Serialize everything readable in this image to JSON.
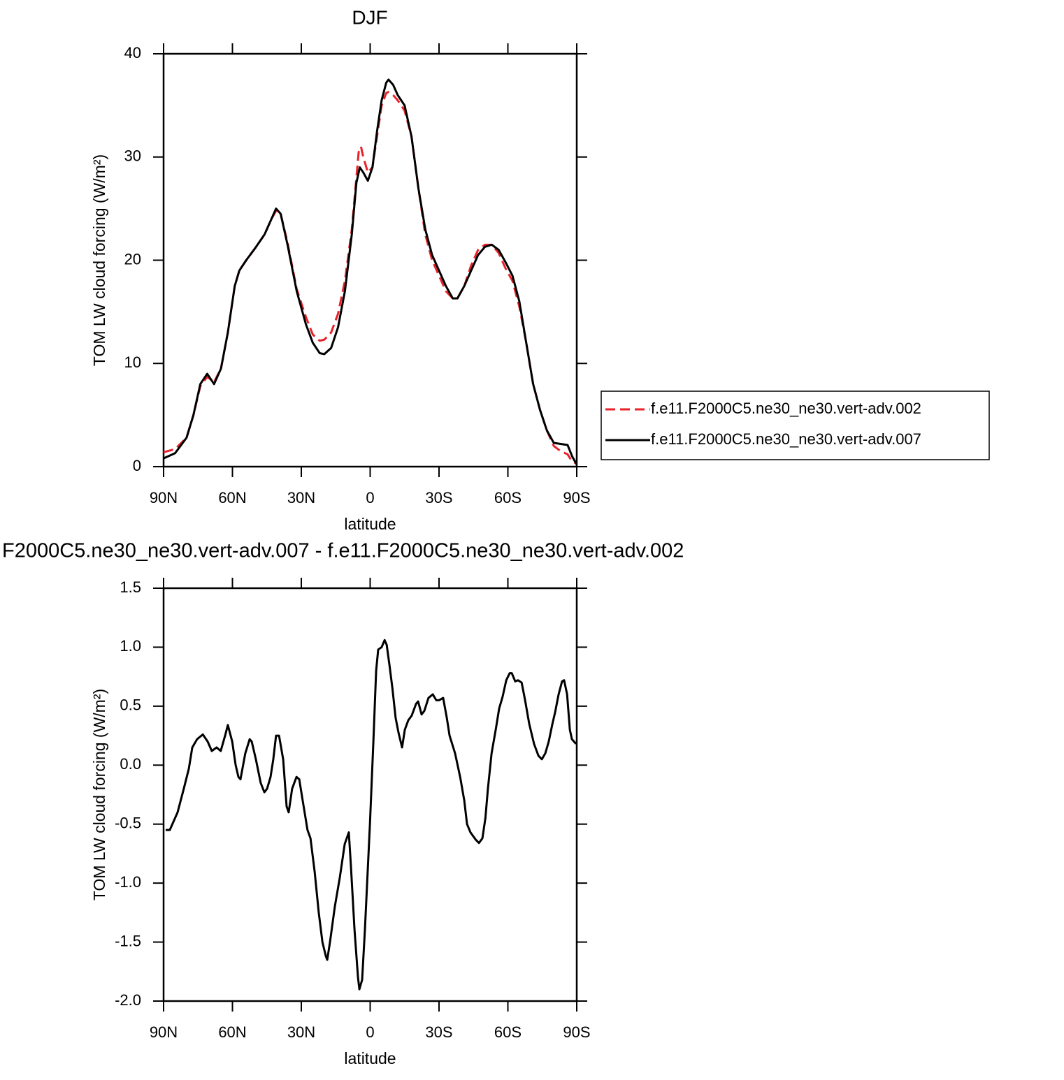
{
  "chart_data": [
    {
      "type": "line",
      "title": "DJF",
      "xlabel": "latitude",
      "ylabel": "TOM LW cloud forcing (W/m²)",
      "xlim": [
        90,
        -90
      ],
      "xticks": [
        {
          "value": 90,
          "label": "90N"
        },
        {
          "value": 60,
          "label": "60N"
        },
        {
          "value": 30,
          "label": "30N"
        },
        0,
        {
          "value": -30,
          "label": "30S"
        },
        {
          "value": -60,
          "label": "60S"
        },
        {
          "value": -90,
          "label": "90S"
        }
      ],
      "ylim": [
        0,
        40
      ],
      "yticks": [
        0,
        10,
        20,
        30,
        40
      ],
      "series": [
        {
          "name": "f.e11.F2000C5.ne30_ne30.vert-adv.002",
          "color": "#e8222a",
          "line_style": "dashed",
          "x": [
            90,
            85,
            80,
            77,
            74,
            71,
            68,
            65,
            62,
            59,
            57,
            54,
            50,
            46,
            43,
            41,
            39,
            36,
            32,
            28,
            25,
            22,
            20,
            17,
            14,
            11,
            8,
            6,
            5,
            4,
            3,
            1,
            -1,
            -3,
            -5,
            -7,
            -8,
            -10,
            -12,
            -15,
            -18,
            -21,
            -24,
            -27,
            -30,
            -33,
            -36,
            -38,
            -41,
            -44,
            -47,
            -50,
            -53,
            -56,
            -59,
            -62,
            -65,
            -68,
            -71,
            -74,
            -77,
            -80,
            -83,
            -86,
            -88,
            -90
          ],
          "values": [
            1.4,
            1.7,
            2.8,
            5,
            7.8,
            8.7,
            8.2,
            9.5,
            13,
            17.5,
            19,
            20,
            21.2,
            22.5,
            24,
            24.8,
            24.5,
            21.7,
            17.2,
            14.5,
            12.8,
            12.2,
            12.3,
            13,
            14.8,
            18,
            23,
            28,
            30.5,
            31,
            30,
            28.5,
            29,
            32,
            35,
            36.2,
            36.3,
            36,
            35.5,
            34.5,
            32,
            27,
            22.5,
            20,
            18.5,
            17,
            16.3,
            16.3,
            17.5,
            19.5,
            21,
            21.5,
            21.5,
            20.7,
            19.2,
            18,
            15.5,
            12,
            8,
            5.5,
            3.5,
            2,
            1.5,
            1.2,
            0.5,
            0.3
          ]
        },
        {
          "name": "f.e11.F2000C5.ne30_ne30.vert-adv.007",
          "color": "#000000",
          "line_style": "solid",
          "x": [
            90,
            85,
            80,
            77,
            74,
            71,
            68,
            65,
            62,
            59,
            57,
            54,
            50,
            46,
            43,
            41,
            39,
            36,
            32,
            28,
            25,
            22,
            20,
            17,
            14,
            11,
            8,
            6,
            4.5,
            3,
            1,
            -1,
            -3,
            -5,
            -7,
            -8,
            -10,
            -12,
            -15,
            -18,
            -21,
            -24,
            -27,
            -30,
            -33,
            -36,
            -38,
            -41,
            -44,
            -47,
            -50,
            -53,
            -56,
            -59,
            -62,
            -65,
            -68,
            -71,
            -74,
            -77,
            -80,
            -83,
            -86,
            -88,
            -90
          ],
          "values": [
            0.8,
            1.3,
            2.8,
            5,
            8,
            9,
            8,
            9.5,
            13,
            17.5,
            19,
            20,
            21.2,
            22.5,
            24,
            25,
            24.5,
            21.5,
            17,
            13.8,
            12,
            11,
            10.9,
            11.5,
            13.5,
            17,
            22.5,
            27.5,
            29,
            28.5,
            27.7,
            29,
            32.5,
            35.5,
            37.2,
            37.5,
            37,
            36,
            35,
            32,
            27,
            23,
            20.5,
            19,
            17.5,
            16.3,
            16.3,
            17.5,
            19,
            20.5,
            21.3,
            21.5,
            21,
            19.8,
            18.5,
            16,
            12,
            8,
            5.5,
            3.5,
            2.3,
            2.2,
            2.1,
            1,
            0.2
          ]
        }
      ]
    },
    {
      "type": "line",
      "title": "F2000C5.ne30_ne30.vert-adv.007 - f.e11.F2000C5.ne30_ne30.vert-adv.002",
      "xlabel": "latitude",
      "ylabel": "TOM LW cloud forcing (W/m²)",
      "xlim": [
        90,
        -90
      ],
      "xticks": [
        {
          "value": 90,
          "label": "90N"
        },
        {
          "value": 60,
          "label": "60N"
        },
        {
          "value": 30,
          "label": "30N"
        },
        0,
        {
          "value": -30,
          "label": "30S"
        },
        {
          "value": -60,
          "label": "60S"
        },
        {
          "value": -90,
          "label": "90S"
        }
      ],
      "ylim": [
        -2,
        1.5
      ],
      "yticks": [
        {
          "value": -2,
          "label": "-2.0"
        },
        -1.5,
        {
          "value": -1,
          "label": "-1.0"
        },
        -0.5,
        {
          "value": 0,
          "label": "0.0"
        },
        0.5,
        {
          "value": 1,
          "label": "1.0"
        },
        1.5
      ],
      "series": [
        {
          "color": "#000000",
          "line_style": "solid",
          "x": [
            89.1,
            87.3,
            83.9,
            81.2,
            79.0,
            77.5,
            75.4,
            72.9,
            70.8,
            69.0,
            66.9,
            65.1,
            63.2,
            62.0,
            60.1,
            58.6,
            57.4,
            56.5,
            54.4,
            52.5,
            51.6,
            49.8,
            47.7,
            46.1,
            44.9,
            43.4,
            42.2,
            41.0,
            39.7,
            37.9,
            36.4,
            35.5,
            34.0,
            32.1,
            30.9,
            29.4,
            27.3,
            26.0,
            24.2,
            22.4,
            20.8,
            19.3,
            18.7,
            17.5,
            15.4,
            13.2,
            11.1,
            9.3,
            8.4,
            6.8,
            5.3,
            4.7,
            3.5,
            2.3,
            0.1,
            -1.4,
            -2.6,
            -3.5,
            -5.0,
            -6.3,
            -7.2,
            -8.4,
            -9.7,
            -11.1,
            -12.3,
            -13.9,
            -15.1,
            -16.6,
            -18.1,
            -20.0,
            -20.9,
            -22.4,
            -23.6,
            -25.4,
            -27.3,
            -28.8,
            -30.0,
            -31.8,
            -33.4,
            -34.6,
            -37.0,
            -39.2,
            -41.0,
            -42.2,
            -43.7,
            -45.9,
            -47.4,
            -48.9,
            -50.2,
            -51.3,
            -52.9,
            -54.7,
            -56.2,
            -57.7,
            -59.3,
            -60.8,
            -61.7,
            -63.2,
            -64.4,
            -66.0,
            -67.5,
            -69.3,
            -71.4,
            -73.3,
            -74.8,
            -76.3,
            -77.8,
            -79.4,
            -80.6,
            -82.1,
            -83.6,
            -84.5,
            -85.8,
            -87.0,
            -87.9,
            -89.7
          ],
          "values": [
            -0.55,
            -0.55,
            -0.4,
            -0.2,
            -0.03,
            0.15,
            0.22,
            0.26,
            0.2,
            0.12,
            0.15,
            0.12,
            0.25,
            0.34,
            0.2,
            0.0,
            -0.1,
            -0.12,
            0.1,
            0.22,
            0.2,
            0.05,
            -0.15,
            -0.23,
            -0.2,
            -0.1,
            0.05,
            0.25,
            0.25,
            0.05,
            -0.35,
            -0.4,
            -0.2,
            -0.1,
            -0.12,
            -0.3,
            -0.55,
            -0.62,
            -0.9,
            -1.25,
            -1.5,
            -1.62,
            -1.65,
            -1.5,
            -1.2,
            -0.95,
            -0.67,
            -0.57,
            -0.85,
            -1.4,
            -1.8,
            -1.9,
            -1.82,
            -1.4,
            -0.5,
            0.2,
            0.8,
            0.98,
            1.0,
            1.06,
            1.02,
            0.85,
            0.65,
            0.4,
            0.28,
            0.15,
            0.3,
            0.38,
            0.42,
            0.52,
            0.54,
            0.43,
            0.46,
            0.57,
            0.6,
            0.55,
            0.55,
            0.57,
            0.4,
            0.25,
            0.1,
            -0.1,
            -0.3,
            -0.5,
            -0.57,
            -0.63,
            -0.66,
            -0.62,
            -0.45,
            -0.2,
            0.1,
            0.3,
            0.48,
            0.58,
            0.72,
            0.78,
            0.78,
            0.71,
            0.72,
            0.7,
            0.55,
            0.35,
            0.18,
            0.08,
            0.05,
            0.1,
            0.2,
            0.35,
            0.45,
            0.6,
            0.71,
            0.72,
            0.6,
            0.3,
            0.22,
            0.18
          ]
        }
      ]
    }
  ]
}
